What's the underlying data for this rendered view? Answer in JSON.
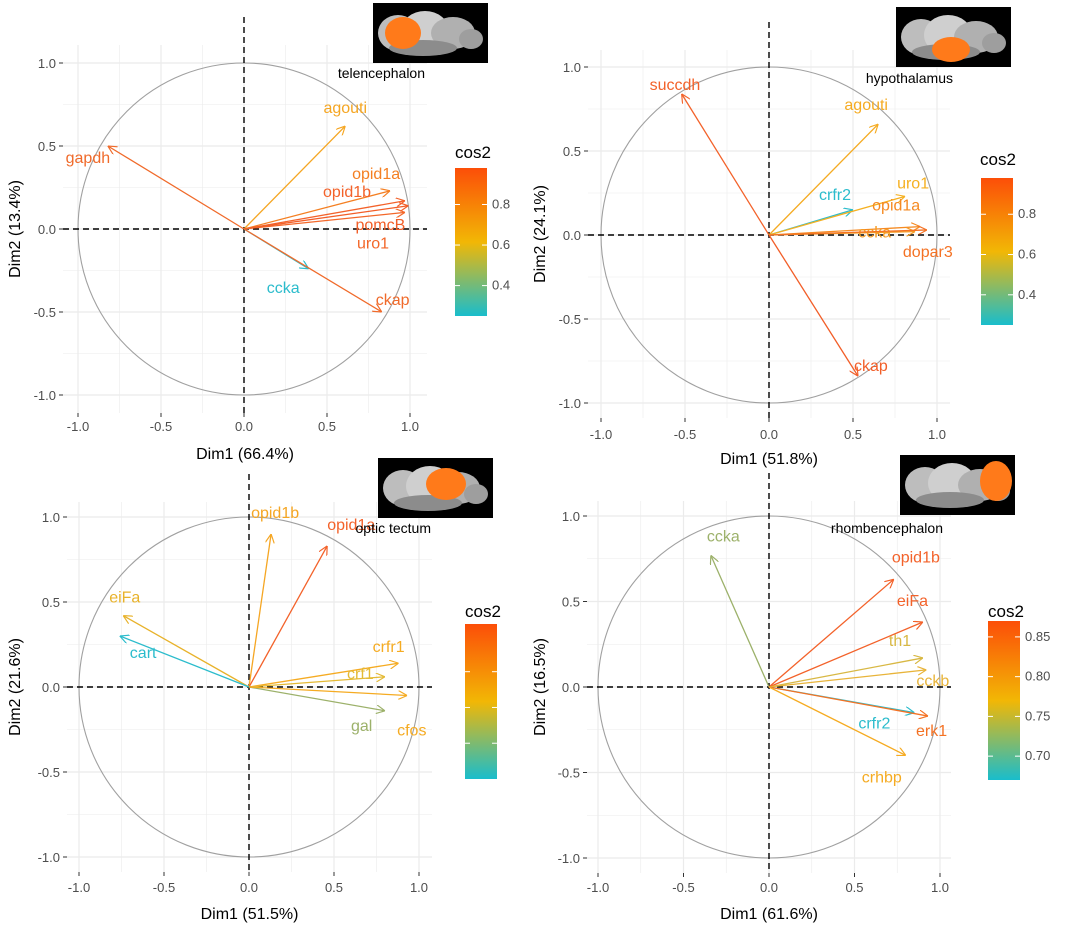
{
  "chart_data": [
    {
      "type": "pca_correlation_circle",
      "title": "telencephalon",
      "xlabel": "Dim1 (66.4%)",
      "ylabel": "Dim2 (13.4%)",
      "xlim": [
        -1.1,
        1.1
      ],
      "ylim": [
        -1.1,
        1.1
      ],
      "ticks": [
        "-1.0",
        "-0.5",
        "0.0",
        "0.5",
        "1.0"
      ],
      "legend": {
        "title": "cos2",
        "range": [
          0.25,
          0.98
        ],
        "ticks": [
          "0.4",
          "0.6",
          "0.8"
        ],
        "tick_values": [
          0.4,
          0.6,
          0.8
        ]
      },
      "variables": [
        {
          "name": "gapdh",
          "x": -0.82,
          "y": 0.5,
          "cos2": 0.92,
          "color": "#f06a2a"
        },
        {
          "name": "agouti",
          "x": 0.61,
          "y": 0.62,
          "cos2": 0.78,
          "color": "#f5a623"
        },
        {
          "name": "opid1a",
          "x": 0.88,
          "y": 0.23,
          "cos2": 0.83,
          "color": "#f47f22"
        },
        {
          "name": "opid1b",
          "x": 0.97,
          "y": 0.17,
          "cos2": 0.96,
          "color": "#f3622a"
        },
        {
          "name": "pomcB",
          "x": 0.99,
          "y": 0.14,
          "cos2": 0.98,
          "color": "#f25e28"
        },
        {
          "name": "uro1",
          "x": 0.97,
          "y": 0.1,
          "cos2": 0.95,
          "color": "#f36729"
        },
        {
          "name": "ccka",
          "x": 0.39,
          "y": -0.24,
          "cos2": 0.25,
          "color": "#2bbccc"
        },
        {
          "name": "ckap",
          "x": 0.83,
          "y": -0.5,
          "cos2": 0.93,
          "color": "#f06a2a"
        }
      ]
    },
    {
      "type": "pca_correlation_circle",
      "title": "hypothalamus",
      "xlabel": "Dim1 (51.8%)",
      "ylabel": "Dim2 (24.1%)",
      "xlim": [
        -1.1,
        1.1
      ],
      "ylim": [
        -1.1,
        1.1
      ],
      "ticks": [
        "-1.0",
        "-0.5",
        "0.0",
        "0.5",
        "1.0"
      ],
      "legend": {
        "title": "cos2",
        "range": [
          0.25,
          0.98
        ],
        "ticks": [
          "0.4",
          "0.6",
          "0.8"
        ],
        "tick_values": [
          0.4,
          0.6,
          0.8
        ]
      },
      "variables": [
        {
          "name": "succdh",
          "x": -0.52,
          "y": 0.84,
          "cos2": 0.97,
          "color": "#f3622a"
        },
        {
          "name": "agouti",
          "x": 0.65,
          "y": 0.66,
          "cos2": 0.72,
          "color": "#f5ab22"
        },
        {
          "name": "crfr2",
          "x": 0.5,
          "y": 0.15,
          "cos2": 0.28,
          "color": "#2bbccc"
        },
        {
          "name": "uro1",
          "x": 0.81,
          "y": 0.23,
          "cos2": 0.7,
          "color": "#f5b021"
        },
        {
          "name": "opid1a",
          "x": 0.9,
          "y": 0.05,
          "cos2": 0.81,
          "color": "#f58a22"
        },
        {
          "name": "ccka",
          "x": 0.87,
          "y": 0.02,
          "cos2": 0.76,
          "color": "#f59b22"
        },
        {
          "name": "dopar3",
          "x": 0.94,
          "y": 0.03,
          "cos2": 0.89,
          "color": "#f47224"
        },
        {
          "name": "ckap",
          "x": 0.53,
          "y": -0.84,
          "cos2": 0.98,
          "color": "#f25e28"
        }
      ]
    },
    {
      "type": "pca_correlation_circle",
      "title": "optic tectum",
      "xlabel": "Dim1 (51.5%)",
      "ylabel": "Dim2 (21.6%)",
      "xlim": [
        -1.1,
        1.1
      ],
      "ylim": [
        -1.1,
        1.1
      ],
      "ticks": [
        "-1.0",
        "-0.5",
        "0.0",
        "0.5",
        "1.0"
      ],
      "legend": {
        "title": "cos2",
        "range": [
          0.3,
          0.95
        ],
        "ticks": [
          "",
          "",
          ""
        ],
        "tick_values": [
          0.45,
          0.6,
          0.75
        ]
      },
      "variables": [
        {
          "name": "opid1b",
          "x": 0.13,
          "y": 0.9,
          "cos2": 0.82,
          "color": "#f5a623"
        },
        {
          "name": "opid1a",
          "x": 0.46,
          "y": 0.83,
          "cos2": 0.9,
          "color": "#f3622a"
        },
        {
          "name": "eiFa",
          "x": -0.74,
          "y": 0.42,
          "cos2": 0.74,
          "color": "#e8b22a"
        },
        {
          "name": "cart",
          "x": -0.76,
          "y": 0.3,
          "cos2": 0.35,
          "color": "#2bbccc"
        },
        {
          "name": "crfr1",
          "x": 0.88,
          "y": 0.14,
          "cos2": 0.8,
          "color": "#f5ab22"
        },
        {
          "name": "crf1",
          "x": 0.8,
          "y": 0.06,
          "cos2": 0.7,
          "color": "#e4ba35"
        },
        {
          "name": "gal",
          "x": 0.8,
          "y": -0.14,
          "cos2": 0.55,
          "color": "#9cb16a"
        },
        {
          "name": "cfos",
          "x": 0.93,
          "y": -0.05,
          "cos2": 0.82,
          "color": "#f5ab22"
        }
      ]
    },
    {
      "type": "pca_correlation_circle",
      "title": "rhombencephalon",
      "xlabel": "Dim1 (61.6%)",
      "ylabel": "Dim2 (16.5%)",
      "xlim": [
        -1.1,
        1.1
      ],
      "ylim": [
        -1.1,
        1.1
      ],
      "ticks": [
        "-1.0",
        "-0.5",
        "0.0",
        "0.5",
        "1.0"
      ],
      "legend": {
        "title": "cos2",
        "range": [
          0.67,
          0.87
        ],
        "ticks": [
          "0.70",
          "0.75",
          "0.80",
          "0.85"
        ],
        "tick_values": [
          0.7,
          0.75,
          0.8,
          0.85
        ]
      },
      "variables": [
        {
          "name": "ccka",
          "x": -0.34,
          "y": 0.77,
          "cos2": 0.71,
          "color": "#9cb16a"
        },
        {
          "name": "opid1b",
          "x": 0.73,
          "y": 0.63,
          "cos2": 0.86,
          "color": "#f3622a"
        },
        {
          "name": "eiFa",
          "x": 0.9,
          "y": 0.38,
          "cos2": 0.86,
          "color": "#f3622a"
        },
        {
          "name": "th1",
          "x": 0.9,
          "y": 0.17,
          "cos2": 0.76,
          "color": "#d8b844"
        },
        {
          "name": "cckb",
          "x": 0.92,
          "y": 0.1,
          "cos2": 0.77,
          "color": "#e8b43a"
        },
        {
          "name": "crfr2",
          "x": 0.85,
          "y": -0.15,
          "cos2": 0.68,
          "color": "#2bbccc"
        },
        {
          "name": "erk1",
          "x": 0.93,
          "y": -0.17,
          "cos2": 0.84,
          "color": "#f47224"
        },
        {
          "name": "crhbp",
          "x": 0.8,
          "y": -0.4,
          "cos2": 0.78,
          "color": "#f5ab22"
        }
      ]
    }
  ],
  "colors": {
    "low": "#19bdcc",
    "mid": "#f2b705",
    "high": "#fc4e08",
    "grid": "#ebebeb",
    "circle": "#a0a0a0"
  }
}
